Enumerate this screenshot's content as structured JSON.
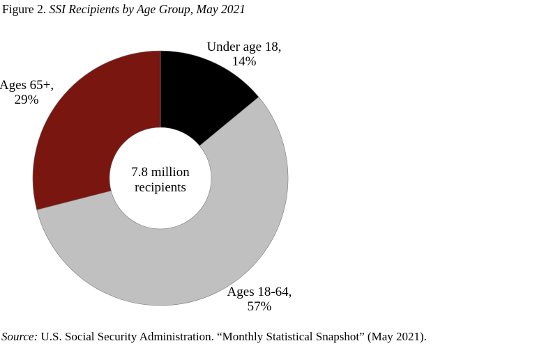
{
  "figure": {
    "number_label": "Figure 2.",
    "title": "SSI Recipients by Age Group, May 2021"
  },
  "source": {
    "prefix": "Source:",
    "text": "U.S. Social Security Administration. “Monthly Statistical Snapshot” (May 2021)."
  },
  "chart_data": {
    "type": "pie",
    "variant": "donut",
    "title": "SSI Recipients by Age Group, May 2021",
    "center_label": [
      "7.8 million",
      "recipients"
    ],
    "slices": [
      {
        "name": "Under age 18",
        "value": 14,
        "label_lines": [
          "Under age 18,",
          "14%"
        ],
        "color": "#000000"
      },
      {
        "name": "Ages 18-64",
        "value": 57,
        "label_lines": [
          "Ages 18-64,",
          "57%"
        ],
        "color": "#c0c0c0"
      },
      {
        "name": "Ages 65+",
        "value": 29,
        "label_lines": [
          "Ages 65+,",
          "29%"
        ],
        "color": "#7a1610"
      }
    ],
    "units": "percent",
    "start_angle": "12 o'clock",
    "direction": "clockwise",
    "legend": "none (direct labels)"
  }
}
